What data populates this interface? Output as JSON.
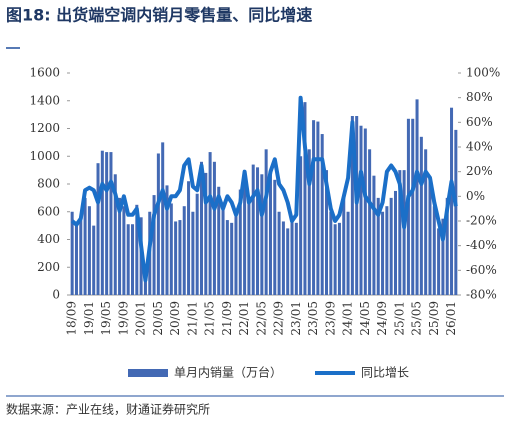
{
  "chart_data": {
    "type": "combo",
    "title": "图18: 出货端空调内销月零售量、同比增速",
    "source": "数据来源：产业在线，财通证券研究所",
    "categories": [
      "18/09",
      null,
      null,
      null,
      "19/01",
      null,
      null,
      null,
      "19/05",
      null,
      null,
      null,
      "19/09",
      null,
      null,
      null,
      "20/01",
      null,
      null,
      null,
      "20/05",
      null,
      null,
      null,
      "20/09",
      null,
      null,
      null,
      "21/01",
      null,
      null,
      null,
      "21/05",
      null,
      null,
      null,
      "21/09",
      null,
      null,
      null,
      "22/01",
      null,
      null,
      null,
      "22/05",
      null,
      null,
      null,
      "22/09",
      null,
      null,
      null,
      "23/01",
      null,
      null,
      null,
      "23/05",
      null,
      null,
      null,
      "23/09",
      null,
      null,
      null,
      "24/01",
      null,
      null,
      null,
      "24/05",
      null,
      null,
      null,
      "24/09",
      null,
      null,
      null,
      "25/01",
      null,
      null,
      null,
      "25/05",
      null,
      null,
      null,
      "25/09",
      null,
      null,
      null,
      "26/01",
      null
    ],
    "series": [
      {
        "name": "单月内销量（万台）",
        "type": "bar",
        "color": "#4369b4",
        "values": [
          600,
          520,
          560,
          700,
          640,
          500,
          950,
          1040,
          1030,
          1030,
          870,
          700,
          640,
          510,
          510,
          650,
          560,
          150,
          600,
          720,
          1020,
          1100,
          790,
          660,
          530,
          540,
          640,
          820,
          600,
          730,
          960,
          880,
          1030,
          960,
          780,
          620,
          540,
          520,
          580,
          760,
          830,
          690,
          940,
          920,
          870,
          1050,
          900,
          830,
          600,
          530,
          480,
          570,
          520,
          1000,
          1390,
          1050,
          1260,
          1250,
          1160,
          900,
          600,
          510,
          520,
          700,
          600,
          1290,
          1290,
          1220,
          1200,
          1050,
          860,
          700,
          600,
          640,
          700,
          750,
          900,
          900,
          1270,
          1270,
          1410,
          1140,
          1050,
          830,
          640,
          480,
          550,
          700,
          1350,
          1190
        ]
      },
      {
        "name": "同比增长",
        "type": "line",
        "axis": "y2",
        "color": "#1b6fc8",
        "values": [
          -20,
          -23,
          -18,
          5,
          7,
          5,
          -5,
          10,
          5,
          12,
          2,
          -12,
          0,
          -15,
          -15,
          -10,
          -40,
          -68,
          -40,
          -15,
          -5,
          5,
          -10,
          0,
          0,
          5,
          25,
          30,
          8,
          5,
          25,
          -5,
          0,
          -10,
          0,
          -10,
          0,
          -5,
          -15,
          -5,
          20,
          -5,
          0,
          5,
          -15,
          0,
          20,
          30,
          10,
          5,
          -5,
          -20,
          -15,
          80,
          40,
          10,
          30,
          30,
          30,
          10,
          -10,
          -20,
          -15,
          0,
          15,
          60,
          -5,
          20,
          0,
          -5,
          -10,
          -15,
          -5,
          20,
          25,
          20,
          10,
          -25,
          0,
          5,
          20,
          10,
          20,
          15,
          -5,
          -20,
          -35,
          -10,
          12,
          -8
        ]
      }
    ],
    "ylim": [
      0,
      1600
    ],
    "yticks": [
      0,
      200,
      400,
      600,
      800,
      1000,
      1200,
      1400,
      1600
    ],
    "y2lim": [
      -80,
      100
    ],
    "y2ticks": [
      {
        "value": -80,
        "label": "-80%"
      },
      {
        "value": -60,
        "label": "-60%"
      },
      {
        "value": -40,
        "label": "-40%"
      },
      {
        "value": -20,
        "label": "-20%"
      },
      {
        "value": 0,
        "label": "0%"
      },
      {
        "value": 20,
        "label": "20%"
      },
      {
        "value": 40,
        "label": "40%"
      },
      {
        "value": 60,
        "label": "60%"
      },
      {
        "value": 80,
        "label": "80%"
      },
      {
        "value": 100,
        "label": "100%"
      }
    ],
    "legend": "bottom"
  }
}
